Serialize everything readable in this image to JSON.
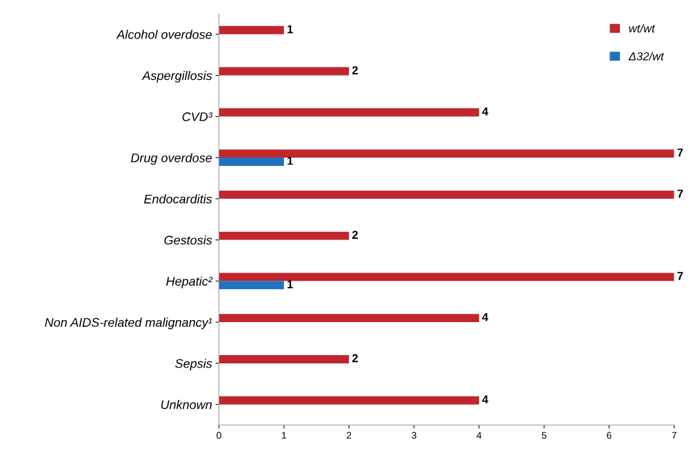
{
  "chart_data": {
    "type": "bar",
    "orientation": "horizontal",
    "categories": [
      "Alcohol overdose",
      "Aspergillosis",
      "CVD³",
      "Drug overdose",
      "Endocarditis",
      "Gestosis",
      "Hepatic²",
      "Non AIDS-related malignancy¹",
      "Sepsis",
      "Unknown"
    ],
    "series": [
      {
        "name": "wt/wt",
        "color": "#c0272d",
        "values": [
          1,
          2,
          4,
          7,
          7,
          2,
          7,
          4,
          2,
          4
        ]
      },
      {
        "name": "Δ32/wt",
        "color": "#1f72c0",
        "values": [
          null,
          null,
          null,
          1,
          null,
          null,
          1,
          null,
          null,
          null
        ]
      }
    ],
    "xlim": [
      0,
      7
    ],
    "xticks": [
      0,
      1,
      2,
      3,
      4,
      5,
      6,
      7
    ],
    "data_labels": true,
    "legend": "top right",
    "grid": false
  }
}
